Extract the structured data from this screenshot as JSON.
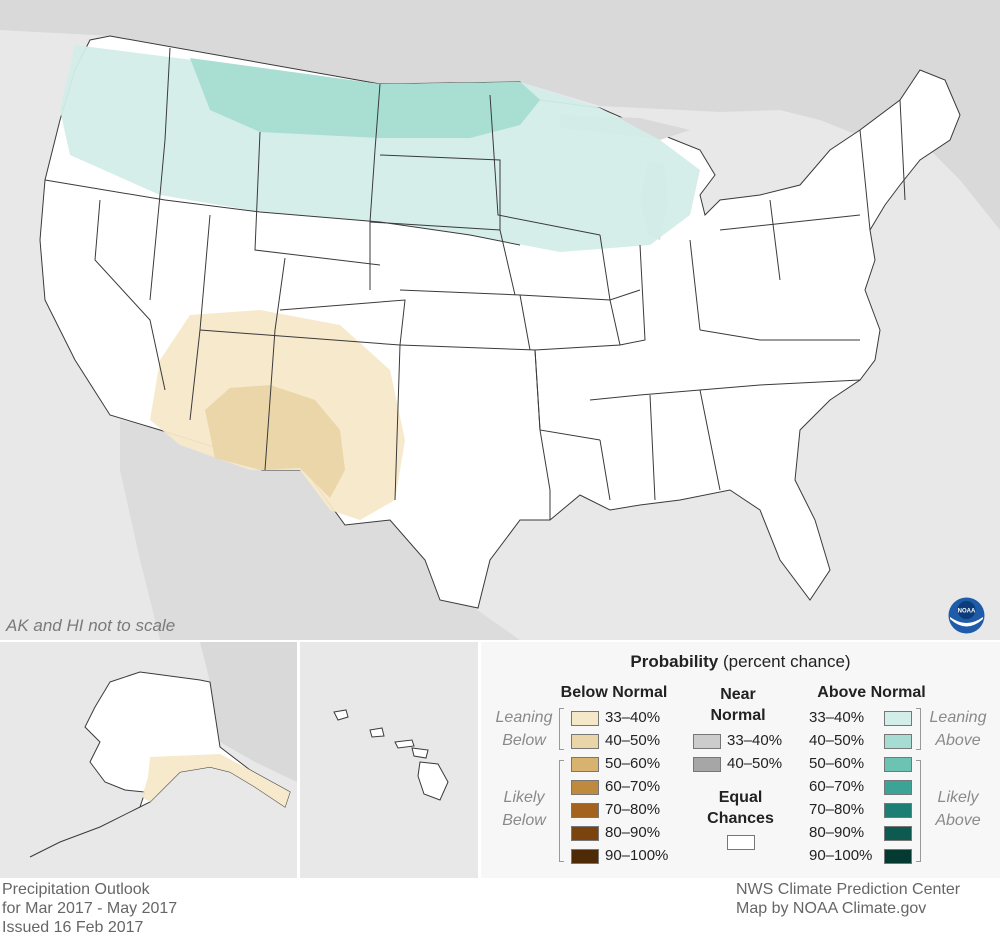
{
  "map": {
    "note": "AK and HI not to scale",
    "logo_text": "NOAA",
    "colors": {
      "land_background": "#e8e8e8",
      "states": "#ffffff",
      "below_33_40": "#f5e8c9",
      "below_40_50": "#e9d5a7",
      "above_33_40": "#d3ede8",
      "above_40_50": "#a6dcd2"
    },
    "shaded_regions": [
      {
        "category": "Above Normal",
        "probability": "33-40%",
        "area": "Northern tier: Pacific Northwest to Great Lakes"
      },
      {
        "category": "Above Normal",
        "probability": "40-50%",
        "area": "Montana and North Dakota"
      },
      {
        "category": "Below Normal",
        "probability": "33-40%",
        "area": "Southwest: Arizona, New Mexico, southern Colorado, west Texas"
      },
      {
        "category": "Below Normal",
        "probability": "40-50%",
        "area": "Southern Arizona and New Mexico"
      },
      {
        "category": "Below Normal",
        "probability": "33-40%",
        "area": "Southern Alaska coast"
      }
    ]
  },
  "legend": {
    "title_bold": "Probability",
    "title_rest": "(percent chance)",
    "below_header": "Below Normal",
    "near_header": "Near Normal",
    "above_header": "Above Normal",
    "leaning_below": "Leaning Below",
    "likely_below": "Likely Below",
    "leaning_above": "Leaning Above",
    "likely_above": "Likely Above",
    "equal_chances": "Equal Chances",
    "below": [
      {
        "label": "33–40%",
        "color": "#f5e8c9"
      },
      {
        "label": "40–50%",
        "color": "#e9d5a7"
      },
      {
        "label": "50–60%",
        "color": "#d8b36f"
      },
      {
        "label": "60–70%",
        "color": "#c08a3e"
      },
      {
        "label": "70–80%",
        "color": "#a4621f"
      },
      {
        "label": "80–90%",
        "color": "#7b430e"
      },
      {
        "label": "90–100%",
        "color": "#4f2a07"
      }
    ],
    "near": [
      {
        "label": "33–40%",
        "color": "#cccccc"
      },
      {
        "label": "40–50%",
        "color": "#a6a6a6"
      }
    ],
    "above": [
      {
        "label": "33–40%",
        "color": "#d3ede8"
      },
      {
        "label": "40–50%",
        "color": "#a6dcd2"
      },
      {
        "label": "50–60%",
        "color": "#6cc3b4"
      },
      {
        "label": "60–70%",
        "color": "#3ba497"
      },
      {
        "label": "70–80%",
        "color": "#1d7f73"
      },
      {
        "label": "80–90%",
        "color": "#0d5b50"
      },
      {
        "label": "90–100%",
        "color": "#053a32"
      }
    ]
  },
  "footer": {
    "left_line1": "Precipitation Outlook",
    "left_line2": "for Mar 2017 - May 2017",
    "left_line3": "Issued 16 Feb 2017",
    "right_line1": "NWS Climate Prediction Center",
    "right_line2": "Map by NOAA Climate.gov"
  }
}
